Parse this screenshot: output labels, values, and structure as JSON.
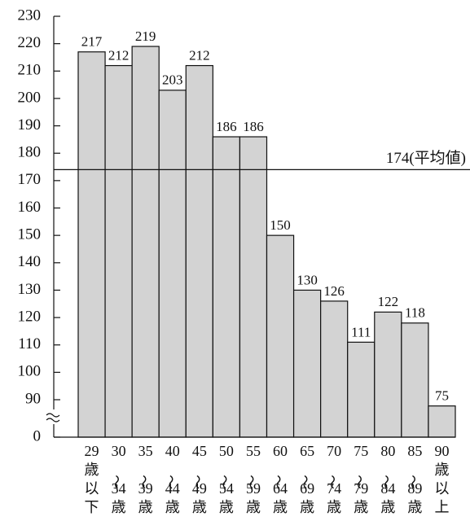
{
  "chart_data": {
    "type": "bar",
    "categories": [
      "29歳以下",
      "30〜34歳",
      "35〜39歳",
      "40〜44歳",
      "45〜49歳",
      "50〜54歳",
      "55〜59歳",
      "60〜64歳",
      "65〜69歳",
      "70〜74歳",
      "75〜79歳",
      "80〜84歳",
      "85〜89歳",
      "90歳以上"
    ],
    "values": [
      217,
      212,
      219,
      203,
      212,
      186,
      186,
      150,
      130,
      126,
      111,
      122,
      118,
      75
    ],
    "color": "#d3d3d3",
    "ylim": [
      0,
      230
    ],
    "yticks": [
      0,
      90,
      100,
      110,
      120,
      130,
      140,
      150,
      160,
      170,
      180,
      190,
      200,
      210,
      220,
      230
    ],
    "axis_break": 90,
    "reference_line": {
      "value": 174,
      "label": "174(平均値)"
    }
  }
}
